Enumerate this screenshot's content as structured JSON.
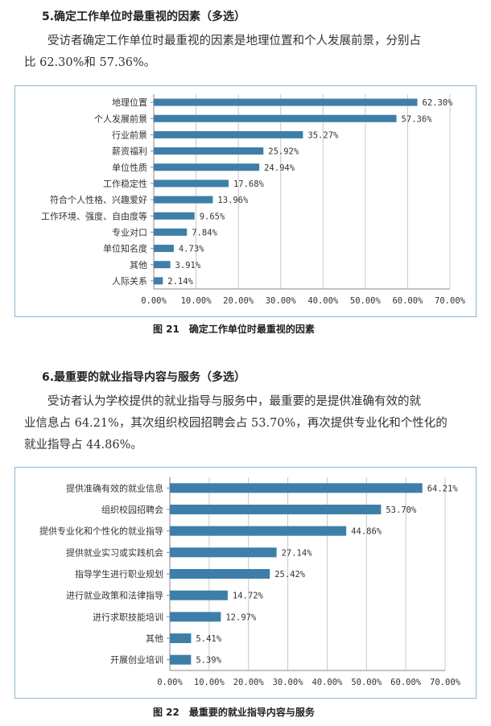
{
  "section1": {
    "heading": "5.确定工作单位时最重视的因素（多选）",
    "paragraph_line1": "受访者确定工作单位时最重视的因素是地理位置和个人发展前景，分别占",
    "paragraph_line2": "比 62.30%和 57.36%。",
    "caption": "图 21　确定工作单位时最重视的因素"
  },
  "section2": {
    "heading": "6.最重要的就业指导内容与服务（多选）",
    "paragraph_line1": "受访者认为学校提供的就业指导与服务中，最重要的是提供准确有效的就",
    "paragraph_line2": "业信息占 64.21%，其次组织校园招聘会占 53.70%，再次提供专业化和个性化的",
    "paragraph_line3": "就业指导占 44.86%。",
    "caption": "图 22　最重要的就业指导内容与服务"
  },
  "colors": {
    "bar": "#3d7fa8",
    "grid": "#c8c8c8",
    "axis": "#888888",
    "border": "#8fb3cc"
  },
  "chart_data": [
    {
      "type": "bar",
      "orientation": "horizontal",
      "categories": [
        "地理位置",
        "个人发展前景",
        "行业前景",
        "薪资福利",
        "单位性质",
        "工作稳定性",
        "符合个人性格、兴趣爱好",
        "工作环境、强度、自由度等",
        "专业对口",
        "单位知名度",
        "其他",
        "人际关系"
      ],
      "values": [
        62.3,
        57.36,
        35.27,
        25.92,
        24.94,
        17.68,
        13.96,
        9.65,
        7.84,
        4.73,
        3.91,
        2.14
      ],
      "value_labels": [
        "62.30%",
        "57.36%",
        "35.27%",
        "25.92%",
        "24.94%",
        "17.68%",
        "13.96%",
        "9.65%",
        "7.84%",
        "4.73%",
        "3.91%",
        "2.14%"
      ],
      "xticks": [
        "0.00%",
        "10.00%",
        "20.00%",
        "30.00%",
        "40.00%",
        "50.00%",
        "60.00%",
        "70.00%"
      ],
      "xlim": [
        0,
        70
      ],
      "grid": true,
      "legend": "none"
    },
    {
      "type": "bar",
      "orientation": "horizontal",
      "categories": [
        "提供准确有效的就业信息",
        "组织校园招聘会",
        "提供专业化和个性化的就业指导",
        "提供就业实习或实践机会",
        "指导学生进行职业规划",
        "进行就业政策和法律指导",
        "进行求职技能培训",
        "其他",
        "开展创业培训"
      ],
      "values": [
        64.21,
        53.7,
        44.86,
        27.14,
        25.42,
        14.72,
        12.97,
        5.41,
        5.39
      ],
      "value_labels": [
        "64.21%",
        "53.70%",
        "44.86%",
        "27.14%",
        "25.42%",
        "14.72%",
        "12.97%",
        "5.41%",
        "5.39%"
      ],
      "xticks": [
        "0.00%",
        "10.00%",
        "20.00%",
        "30.00%",
        "40.00%",
        "50.00%",
        "60.00%",
        "70.00%"
      ],
      "xlim": [
        0,
        70
      ],
      "grid": true,
      "legend": "none"
    }
  ]
}
